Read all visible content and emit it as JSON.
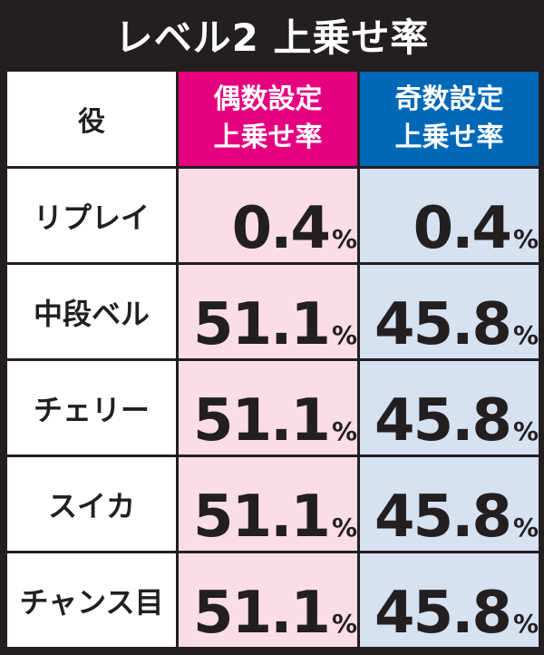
{
  "title": "レベル2 上乗せ率",
  "headers": {
    "role": "役",
    "even_line1": "偶数設定",
    "even_line2": "上乗せ率",
    "odd_line1": "奇数設定",
    "odd_line2": "上乗せ率"
  },
  "unit": "%",
  "rows": [
    {
      "role": "リプレイ",
      "even": "0.4",
      "odd": "0.4"
    },
    {
      "role": "中段ベル",
      "even": "51.1",
      "odd": "45.8"
    },
    {
      "role": "チェリー",
      "even": "51.1",
      "odd": "45.8"
    },
    {
      "role": "スイカ",
      "even": "51.1",
      "odd": "45.8"
    },
    {
      "role": "チャンス目",
      "even": "51.1",
      "odd": "45.8"
    }
  ],
  "colors": {
    "background": "#231f20",
    "even_header": "#e4007f",
    "odd_header": "#0068b7",
    "even_cell": "#fbdde8",
    "odd_cell": "#d6e1f1"
  }
}
